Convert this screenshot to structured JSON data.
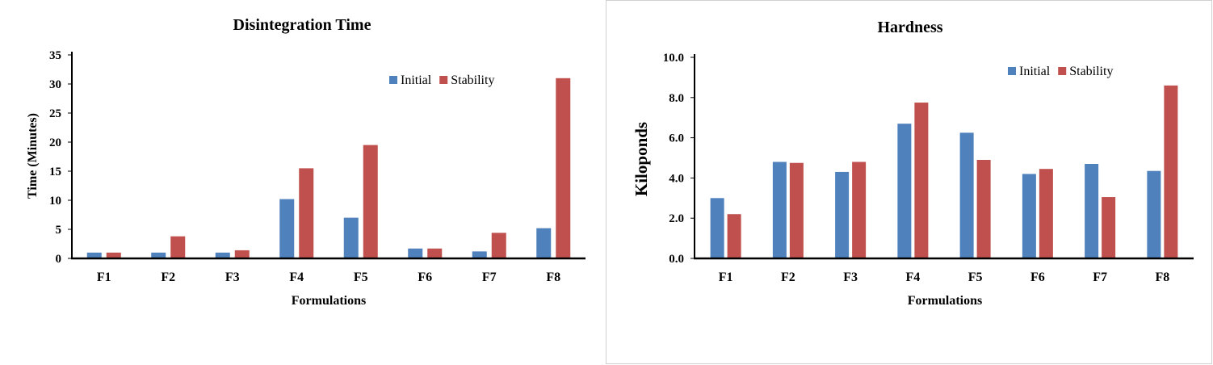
{
  "chart_data": [
    {
      "type": "bar",
      "title": "Disintegration Time",
      "xlabel": "Formulations",
      "ylabel": "Time (Minutes)",
      "ylim": [
        0,
        35
      ],
      "yticks": [
        "0",
        "5",
        "10",
        "15",
        "20",
        "25",
        "30",
        "35"
      ],
      "categories": [
        "F1",
        "F2",
        "F3",
        "F4",
        "F5",
        "F6",
        "F7",
        "F8"
      ],
      "series": [
        {
          "name": "Initial",
          "color": "#4F81BD",
          "values": [
            1.0,
            1.0,
            1.0,
            10.2,
            7.0,
            1.7,
            1.2,
            5.2
          ]
        },
        {
          "name": "Stability",
          "color": "#C0504D",
          "values": [
            1.0,
            3.8,
            1.4,
            15.5,
            19.5,
            1.7,
            4.4,
            31.0
          ]
        }
      ],
      "legend": "top-right",
      "grid": false
    },
    {
      "type": "bar",
      "title": "Hardness",
      "xlabel": "Formulations",
      "ylabel": "Kiloponds",
      "ylim": [
        0,
        10
      ],
      "yticks": [
        "0.0",
        "2.0",
        "4.0",
        "6.0",
        "8.0",
        "10.0"
      ],
      "categories": [
        "F1",
        "F2",
        "F3",
        "F4",
        "F5",
        "F6",
        "F7",
        "F8"
      ],
      "series": [
        {
          "name": "Initial",
          "color": "#4F81BD",
          "values": [
            3.0,
            4.8,
            4.3,
            6.7,
            6.25,
            4.2,
            4.7,
            4.35
          ]
        },
        {
          "name": "Stability",
          "color": "#C0504D",
          "values": [
            2.2,
            4.75,
            4.8,
            7.75,
            4.9,
            4.45,
            3.05,
            8.6
          ]
        }
      ],
      "legend": "top-right",
      "grid": false
    }
  ]
}
